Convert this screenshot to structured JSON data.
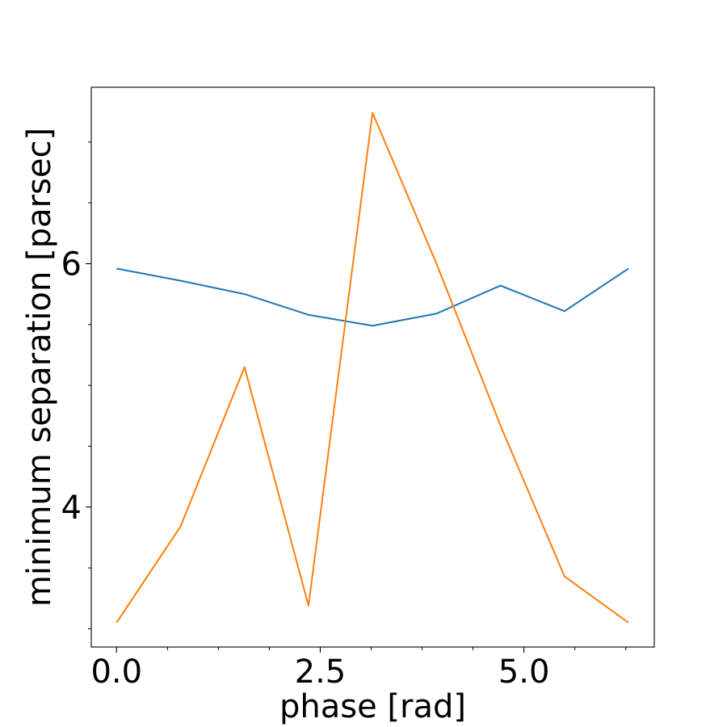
{
  "chart_data": {
    "type": "line",
    "title": "",
    "xlabel": "phase [rad]",
    "ylabel": "minimum separation [parsec]",
    "xlim": [
      -0.31,
      6.6
    ],
    "ylim": [
      2.85,
      7.45
    ],
    "x_major_ticks": [
      0.0,
      2.5,
      5.0
    ],
    "x_tick_labels": [
      "0.0",
      "2.5",
      "5.0"
    ],
    "x_minor_ticks": [
      0.625,
      1.25,
      1.875,
      3.125,
      3.75,
      4.375,
      5.625,
      6.25
    ],
    "y_major_ticks": [
      4,
      6
    ],
    "y_tick_labels": [
      "4",
      "6"
    ],
    "y_minor_ticks": [
      3.0,
      3.5,
      4.5,
      5.0,
      5.5,
      6.5,
      7.0
    ],
    "grid": false,
    "legend": null,
    "x": [
      0.0,
      0.785,
      1.571,
      2.356,
      3.142,
      3.927,
      4.712,
      5.498,
      6.283
    ],
    "series": [
      {
        "color": "#1f77b4",
        "values": [
          5.96,
          5.86,
          5.75,
          5.58,
          5.49,
          5.59,
          5.82,
          5.61,
          5.96
        ]
      },
      {
        "color": "#ff7f0e",
        "values": [
          3.05,
          3.84,
          5.15,
          3.19,
          7.24,
          6.0,
          4.67,
          3.43,
          3.05
        ]
      }
    ]
  }
}
